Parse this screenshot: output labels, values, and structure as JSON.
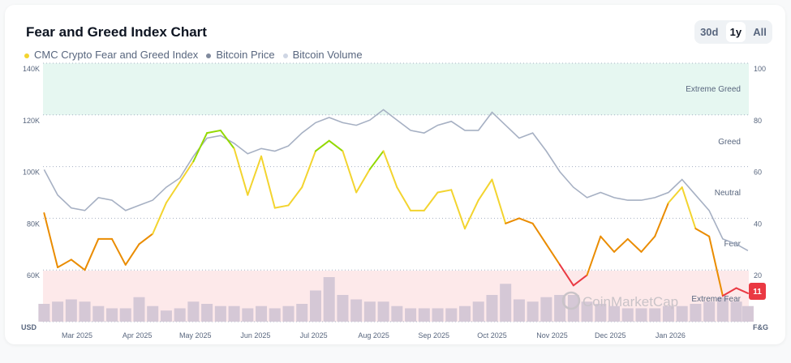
{
  "header": {
    "title": "Fear and Greed Index Chart",
    "ranges": [
      "30d",
      "1y",
      "All"
    ],
    "active_range": "1y"
  },
  "legend": [
    {
      "label": "CMC Crypto Fear and Greed Index",
      "color": "#f3d42f"
    },
    {
      "label": "Bitcoin Price",
      "color": "#808a9d"
    },
    {
      "label": "Bitcoin Volume",
      "color": "#cfd6e4"
    }
  ],
  "watermark": "CoinMarketCap",
  "current_value": "11",
  "colors": {
    "extreme_fear": "#ea3943",
    "fear": "#ea8c00",
    "neutral": "#f3d42f",
    "greed": "#93d900",
    "price": "#a6b0c3",
    "volume": "#d5c8d6",
    "extreme_greed_zone": "#e6f7f1",
    "extreme_fear_zone": "#fde9ea"
  },
  "chart_data": {
    "type": "line",
    "left_axis": {
      "label": "USD",
      "ticks": [
        "140K",
        "120K",
        "100K",
        "80K",
        "60K"
      ],
      "ylim": [
        40000,
        140000
      ]
    },
    "right_axis": {
      "label": "F&G",
      "ticks": [
        "100",
        "80",
        "60",
        "40",
        "20"
      ],
      "ylim": [
        0,
        100
      ]
    },
    "x_ticks": [
      "Mar 2025",
      "Apr 2025",
      "May 2025",
      "Jun 2025",
      "Jul 2025",
      "Aug 2025",
      "Sep 2025",
      "Oct 2025",
      "Nov 2025",
      "Dec 2025",
      "Jan 2026"
    ],
    "zones": [
      "Extreme Greed",
      "Greed",
      "Neutral",
      "Fear",
      "Extreme Fear"
    ],
    "dates": [
      "2025-02-12",
      "2025-02-19",
      "2025-02-26",
      "2025-03-05",
      "2025-03-12",
      "2025-03-19",
      "2025-03-26",
      "2025-04-02",
      "2025-04-09",
      "2025-04-16",
      "2025-04-23",
      "2025-04-30",
      "2025-05-07",
      "2025-05-14",
      "2025-05-21",
      "2025-05-28",
      "2025-06-04",
      "2025-06-11",
      "2025-06-18",
      "2025-06-25",
      "2025-07-02",
      "2025-07-09",
      "2025-07-16",
      "2025-07-23",
      "2025-07-30",
      "2025-08-06",
      "2025-08-13",
      "2025-08-20",
      "2025-08-27",
      "2025-09-03",
      "2025-09-10",
      "2025-09-17",
      "2025-09-24",
      "2025-10-01",
      "2025-10-08",
      "2025-10-15",
      "2025-10-22",
      "2025-10-29",
      "2025-11-05",
      "2025-11-12",
      "2025-11-19",
      "2025-11-26",
      "2025-12-03",
      "2025-12-10",
      "2025-12-17",
      "2025-12-24",
      "2025-12-31",
      "2026-01-07",
      "2026-01-14",
      "2026-01-21",
      "2026-01-28",
      "2026-02-04",
      "2026-02-10"
    ],
    "series": [
      {
        "name": "CMC Crypto Fear and Greed Index",
        "axis": "right",
        "values": [
          42,
          21,
          24,
          20,
          32,
          32,
          22,
          30,
          34,
          46,
          54,
          62,
          73,
          74,
          67,
          49,
          64,
          44,
          45,
          52,
          66,
          70,
          66,
          50,
          59,
          66,
          52,
          43,
          43,
          50,
          51,
          36,
          47,
          55,
          38,
          40,
          38,
          30,
          22,
          14,
          18,
          33,
          27,
          32,
          27,
          33,
          46,
          52,
          36,
          33,
          10,
          13,
          11
        ]
      },
      {
        "name": "Bitcoin Price",
        "axis": "left",
        "values": [
          98800,
          89000,
          84000,
          83000,
          88000,
          87000,
          83000,
          85000,
          87000,
          92000,
          95600,
          104000,
          111000,
          112000,
          109000,
          105000,
          107000,
          106000,
          108000,
          113000,
          117000,
          119000,
          117000,
          116000,
          118000,
          122000,
          118000,
          114000,
          113000,
          116000,
          117500,
          114000,
          114000,
          121000,
          116000,
          111000,
          113000,
          106000,
          98000,
          92000,
          88000,
          90000,
          88000,
          87000,
          87000,
          88000,
          90000,
          95000,
          89000,
          83000,
          72000,
          70000,
          67500
        ]
      },
      {
        "name": "Bitcoin Volume",
        "axis": "none",
        "values": [
          0.4,
          0.45,
          0.5,
          0.45,
          0.35,
          0.3,
          0.3,
          0.55,
          0.35,
          0.25,
          0.3,
          0.45,
          0.4,
          0.35,
          0.35,
          0.3,
          0.35,
          0.3,
          0.35,
          0.4,
          0.7,
          1.0,
          0.6,
          0.5,
          0.45,
          0.45,
          0.35,
          0.3,
          0.3,
          0.3,
          0.3,
          0.35,
          0.45,
          0.6,
          0.85,
          0.5,
          0.45,
          0.55,
          0.6,
          0.6,
          0.45,
          0.4,
          0.35,
          0.3,
          0.3,
          0.3,
          0.35,
          0.35,
          0.4,
          0.45,
          0.55,
          0.45,
          0.35
        ]
      }
    ]
  }
}
